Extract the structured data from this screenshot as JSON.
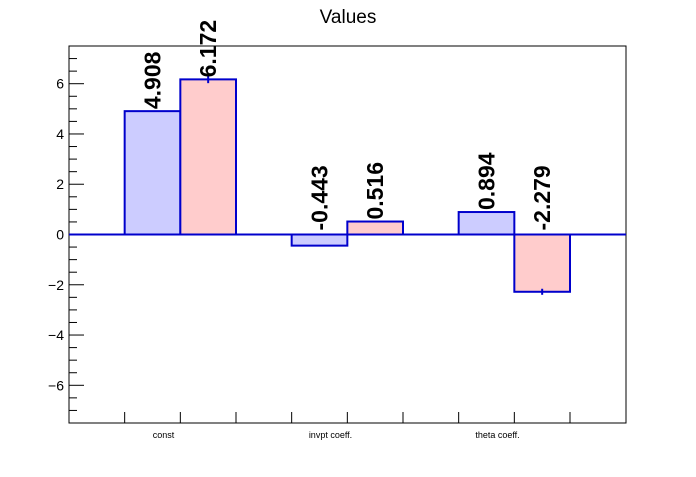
{
  "chart_data": {
    "type": "bar",
    "title": "Values",
    "categories": [
      "const",
      "invpt coeff.",
      "theta coeff."
    ],
    "series": [
      {
        "values": [
          4.908,
          -0.443,
          0.894
        ],
        "fill": "#ccccff",
        "stroke": "#0000cc"
      },
      {
        "values": [
          6.172,
          0.516,
          -2.279
        ],
        "fill": "#ffcccc",
        "stroke": "#0000cc",
        "errors": [
          0.15,
          0.0,
          0.12
        ]
      }
    ],
    "value_labels": [
      [
        "4.908",
        "-0.443",
        "0.894"
      ],
      [
        "6.172",
        "0.516",
        "-2.279"
      ]
    ],
    "ylim": [
      -7.5,
      7.5
    ],
    "yticks": [
      -6,
      -4,
      -2,
      0,
      2,
      4,
      6
    ],
    "ytick_labels": [
      "−6",
      "−4",
      "−2",
      "0",
      "2",
      "4",
      "6"
    ],
    "grid": false,
    "xlabel": "",
    "ylabel": ""
  }
}
